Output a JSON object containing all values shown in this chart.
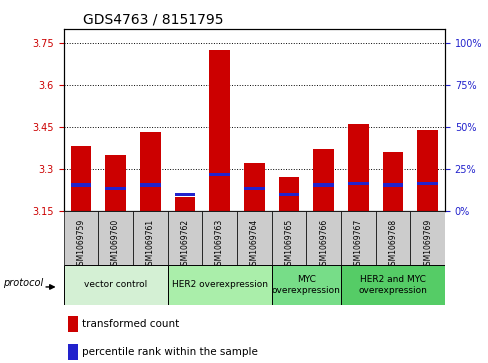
{
  "title": "GDS4763 / 8151795",
  "samples": [
    "GSM1069759",
    "GSM1069760",
    "GSM1069761",
    "GSM1069762",
    "GSM1069763",
    "GSM1069764",
    "GSM1069765",
    "GSM1069766",
    "GSM1069767",
    "GSM1069768",
    "GSM1069769"
  ],
  "transformed_counts": [
    3.38,
    3.35,
    3.43,
    3.2,
    3.725,
    3.32,
    3.27,
    3.37,
    3.46,
    3.36,
    3.44
  ],
  "percentile_ranks": [
    14,
    12,
    14,
    9,
    20,
    12,
    9,
    14,
    15,
    14,
    15
  ],
  "y_min": 3.15,
  "y_max": 3.8,
  "y_ticks": [
    3.15,
    3.3,
    3.45,
    3.6,
    3.75
  ],
  "y_right_ticks": [
    0,
    25,
    50,
    75,
    100
  ],
  "bar_color": "#cc0000",
  "percentile_color": "#2222cc",
  "background_color": "#ffffff",
  "groups": [
    {
      "label": "vector control",
      "start": 0,
      "end": 3,
      "color": "#d4f0d4"
    },
    {
      "label": "HER2 overexpression",
      "start": 3,
      "end": 6,
      "color": "#aaeeaa"
    },
    {
      "label": "MYC\noverexpression",
      "start": 6,
      "end": 8,
      "color": "#77dd88"
    },
    {
      "label": "HER2 and MYC\noverexpression",
      "start": 8,
      "end": 11,
      "color": "#55cc66"
    }
  ],
  "legend_items": [
    {
      "label": "transformed count",
      "color": "#cc0000"
    },
    {
      "label": "percentile rank within the sample",
      "color": "#2222cc"
    }
  ],
  "bar_width": 0.6,
  "tick_label_color_left": "#cc0000",
  "tick_label_color_right": "#2222cc",
  "title_fontsize": 10,
  "axis_fontsize": 7,
  "sample_fontsize": 5.5,
  "group_label_fontsize": 6.5,
  "legend_fontsize": 7.5,
  "sample_bg_color": "#cccccc",
  "plot_bg_color": "#ffffff"
}
